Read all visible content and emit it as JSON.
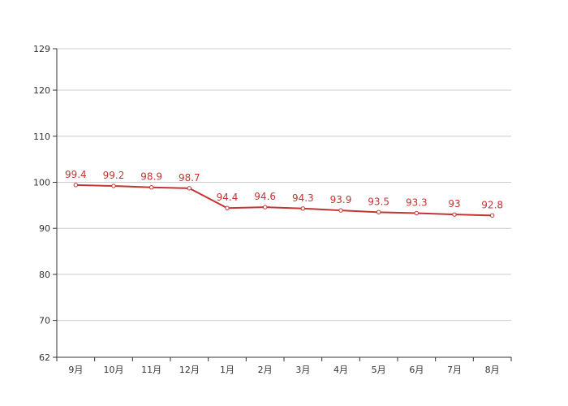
{
  "chart_data": {
    "type": "line",
    "title": "",
    "xlabel": "",
    "ylabel": "",
    "categories": [
      "9月",
      "10月",
      "11月",
      "12月",
      "1月",
      "2月",
      "3月",
      "4月",
      "5月",
      "6月",
      "7月",
      "8月"
    ],
    "series": [
      {
        "values": [
          99.4,
          99.2,
          98.9,
          98.7,
          94.4,
          94.6,
          94.3,
          93.9,
          93.5,
          93.3,
          93,
          92.8
        ],
        "labels": [
          "99.4",
          "99.2",
          "98.9",
          "98.7",
          "94.4",
          "94.6",
          "94.3",
          "93.9",
          "93.5",
          "93.3",
          "93",
          "92.8"
        ],
        "color": "#c23531"
      }
    ],
    "ylim": [
      62,
      129
    ],
    "yticks": [
      62,
      70,
      80,
      90,
      100,
      110,
      120,
      129
    ],
    "ytick_labels": [
      "62",
      "70",
      "80",
      "90",
      "100",
      "110",
      "120",
      "129"
    ],
    "grid": true,
    "data_labels": true,
    "colors": {
      "line": "#c23531",
      "grid": "#cccccc",
      "axis": "#333333"
    }
  }
}
